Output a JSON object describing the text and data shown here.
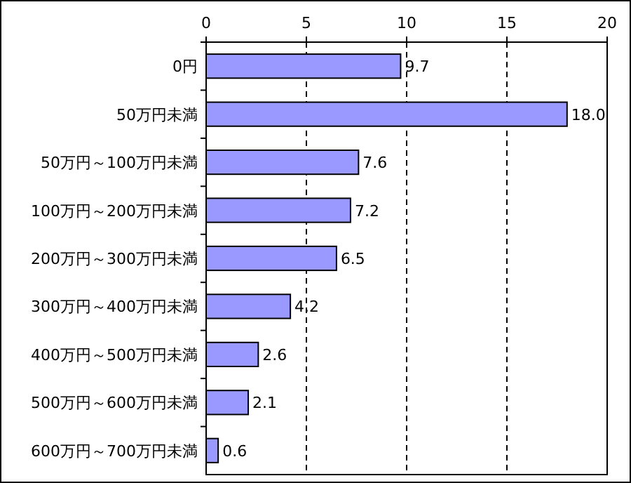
{
  "chart_data": {
    "type": "bar",
    "orientation": "horizontal",
    "categories": [
      "0円",
      "50万円未満",
      "50万円～100万円未満",
      "100万円～200万円未満",
      "200万円～300万円未満",
      "300万円～400万円未満",
      "400万円～500万円未満",
      "500万円～600万円未満",
      "600万円～700万円未満"
    ],
    "values": [
      9.7,
      18.0,
      7.6,
      7.2,
      6.5,
      4.2,
      2.6,
      2.1,
      0.6
    ],
    "value_labels": [
      "9.7",
      "18.0",
      "7.6",
      "7.2",
      "6.5",
      "4.2",
      "2.6",
      "2.1",
      "0.6"
    ],
    "color": "#9999ff",
    "xlim": [
      0,
      20
    ],
    "xticks": [
      0,
      5,
      10,
      15,
      20
    ],
    "grid": "x"
  }
}
